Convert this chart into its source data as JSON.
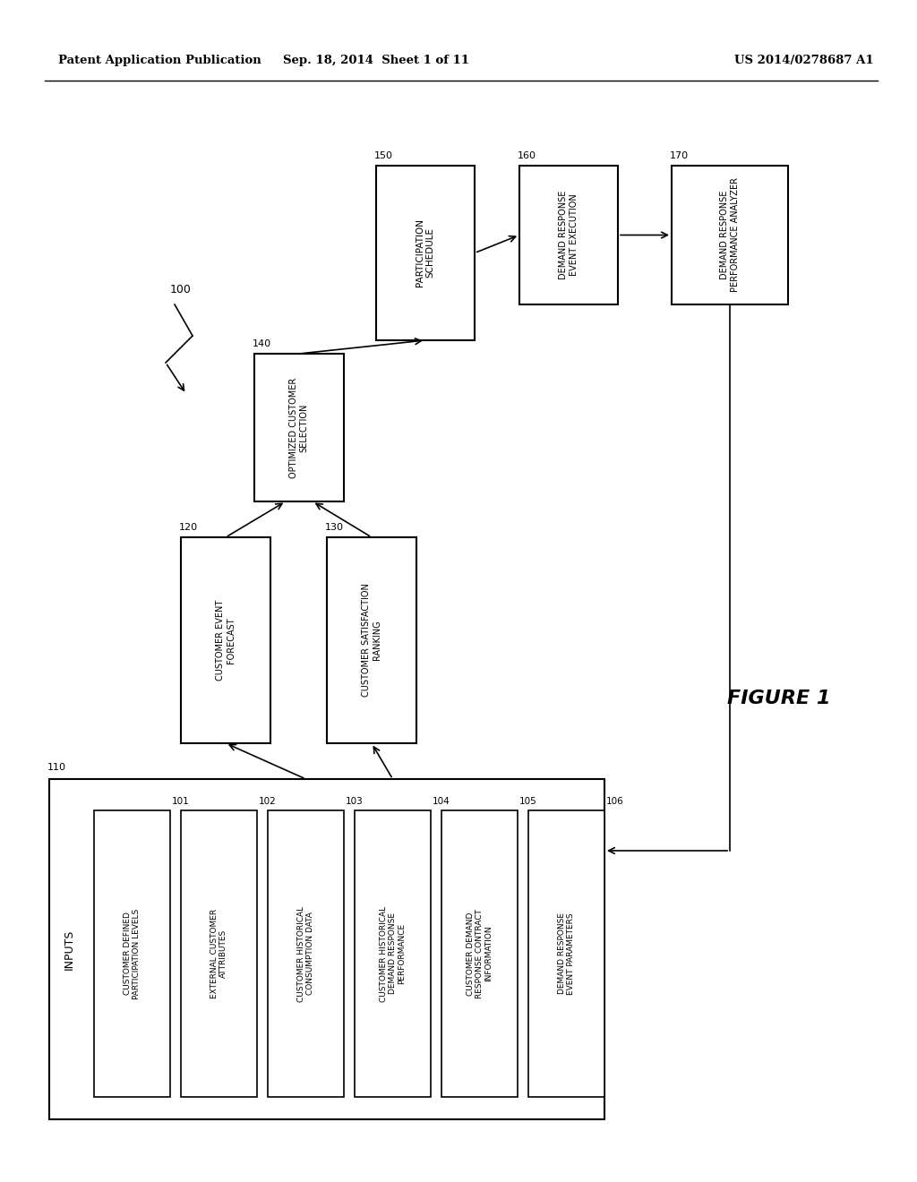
{
  "bg_color": "#ffffff",
  "header_left": "Patent Application Publication",
  "header_mid": "Sep. 18, 2014  Sheet 1 of 11",
  "header_right": "US 2014/0278687 A1",
  "figure_label": "FIGURE 1",
  "system_label": "100",
  "inputs_label": "INPUTS",
  "inputs_id": "110",
  "inner_boxes": [
    {
      "id": "101",
      "label": "CUSTOMER DEFINED\nPARTICIPATION LEVELS"
    },
    {
      "id": "102",
      "label": "EXTERNAL CUSTOMER\nATTRIBUTES"
    },
    {
      "id": "103",
      "label": "CUSTOMER HISTORICAL\nCONSUMPTION DATA"
    },
    {
      "id": "104",
      "label": "CUSTOMER HISTORICAL\nDEMAND RESPONSE\nPERFORMANCE"
    },
    {
      "id": "105",
      "label": "CUSTOMER DEMAND\nRESPONSE CONTRACT\nINFORMATION"
    },
    {
      "id": "106",
      "label": "DEMAND RESPONSE\nEVENT PARAMETERS"
    }
  ],
  "flow_boxes": [
    {
      "id": "120",
      "label": "CUSTOMER EVENT\nFORECAST"
    },
    {
      "id": "130",
      "label": "CUSTOMER SATISFACTION\nRANKING"
    },
    {
      "id": "140",
      "label": "OPTIMIZED CUSTOMER\nSELECTION"
    },
    {
      "id": "150",
      "label": "PARTICIPATION\nSCHEDULE"
    },
    {
      "id": "160",
      "label": "DEMAND RESPONSE\nEVENT EXECUTION"
    },
    {
      "id": "170",
      "label": "DEMAND RESPONSE\nPERFORMANCE ANALYZER"
    }
  ]
}
